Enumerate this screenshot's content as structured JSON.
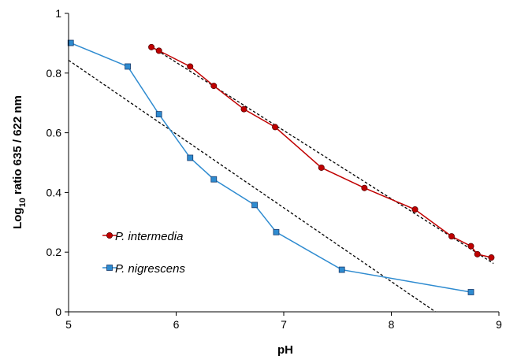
{
  "chart_data": {
    "type": "scatter",
    "xlabel": "pH",
    "ylabel": {
      "prefix": "Log",
      "subscript": "10",
      "suffix": " ratio 635 / 622 nm"
    },
    "xlim": [
      5,
      9
    ],
    "ylim": [
      0,
      1
    ],
    "x_ticks": [
      "5",
      "6",
      "7",
      "8",
      "9"
    ],
    "y_ticks": [
      "0",
      "0.2",
      "0.4",
      "0.6",
      "0.8",
      "1"
    ],
    "grid": false,
    "legend_position": "lower-left",
    "series": [
      {
        "name": "P. intermedia",
        "color": "#c00000",
        "marker": "circle",
        "x": [
          5.77,
          5.84,
          6.13,
          6.35,
          6.63,
          6.92,
          7.35,
          7.75,
          8.22,
          8.56,
          8.74,
          8.8,
          8.93
        ],
        "y": [
          0.887,
          0.875,
          0.822,
          0.757,
          0.679,
          0.619,
          0.483,
          0.415,
          0.343,
          0.253,
          0.22,
          0.193,
          0.182
        ],
        "trendline": {
          "x": [
            5.75,
            8.95
          ],
          "y": [
            0.893,
            0.162
          ],
          "style": "dashed",
          "color": "#000000"
        }
      },
      {
        "name": "P. nigrescens",
        "color": "#2e8bd0",
        "marker": "square",
        "x": [
          5.02,
          5.55,
          5.84,
          6.13,
          6.35,
          6.73,
          6.93,
          7.54,
          8.74
        ],
        "y": [
          0.901,
          0.822,
          0.662,
          0.516,
          0.444,
          0.358,
          0.267,
          0.141,
          0.066
        ],
        "trendline": {
          "x": [
            5.0,
            8.41
          ],
          "y": [
            0.843,
            0.0
          ],
          "style": "dashed",
          "color": "#000000"
        }
      }
    ]
  }
}
